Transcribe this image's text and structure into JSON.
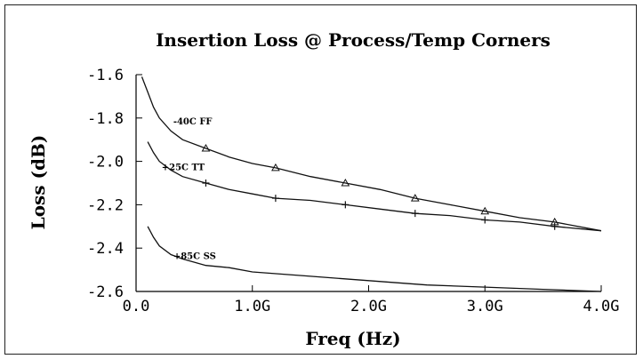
{
  "chart_data": {
    "type": "line",
    "title": "Insertion Loss @ Process/Temp Corners",
    "xlabel": "Freq (Hz)",
    "ylabel": "Loss (dB)",
    "xlim": [
      0,
      4.0
    ],
    "ylim": [
      -2.6,
      -1.6
    ],
    "x_ticks": [
      {
        "value": 0.0,
        "label": "0.0"
      },
      {
        "value": 1.0,
        "label": "1.0G"
      },
      {
        "value": 2.0,
        "label": "2.0G"
      },
      {
        "value": 3.0,
        "label": "3.0G"
      },
      {
        "value": 4.0,
        "label": "4.0G"
      }
    ],
    "y_ticks": [
      {
        "value": -1.6,
        "label": "-1.6"
      },
      {
        "value": -1.8,
        "label": "-1.8"
      },
      {
        "value": -2.0,
        "label": "-2.0"
      },
      {
        "value": -2.2,
        "label": "-2.2"
      },
      {
        "value": -2.4,
        "label": "-2.4"
      },
      {
        "value": -2.6,
        "label": "-2.6"
      }
    ],
    "grid": false,
    "series": [
      {
        "name": "-40C FF",
        "marker": "triangle",
        "x": [
          0.05,
          0.1,
          0.15,
          0.2,
          0.3,
          0.4,
          0.6,
          0.8,
          1.0,
          1.2,
          1.5,
          1.8,
          2.1,
          2.4,
          2.7,
          3.0,
          3.3,
          3.6,
          4.0
        ],
        "y": [
          -1.61,
          -1.68,
          -1.75,
          -1.8,
          -1.86,
          -1.9,
          -1.94,
          -1.98,
          -2.01,
          -2.03,
          -2.07,
          -2.1,
          -2.13,
          -2.17,
          -2.2,
          -2.23,
          -2.26,
          -2.28,
          -2.32
        ],
        "marker_x": [
          0.6,
          1.2,
          1.8,
          2.4,
          3.0,
          3.6
        ]
      },
      {
        "name": "+25C TT",
        "marker": "plus",
        "x": [
          0.1,
          0.15,
          0.2,
          0.3,
          0.4,
          0.6,
          0.8,
          1.0,
          1.2,
          1.5,
          1.8,
          2.1,
          2.4,
          2.7,
          3.0,
          3.3,
          3.6,
          4.0
        ],
        "y": [
          -1.91,
          -1.96,
          -2.0,
          -2.04,
          -2.07,
          -2.1,
          -2.13,
          -2.15,
          -2.17,
          -2.18,
          -2.2,
          -2.22,
          -2.24,
          -2.25,
          -2.27,
          -2.28,
          -2.3,
          -2.32
        ],
        "marker_x": [
          0.6,
          1.2,
          1.8,
          2.4,
          3.0,
          3.6
        ]
      },
      {
        "name": "+85C SS",
        "marker": "none",
        "x": [
          0.1,
          0.15,
          0.2,
          0.3,
          0.4,
          0.6,
          0.8,
          1.0,
          1.5,
          2.0,
          2.5,
          3.0,
          3.5,
          4.0
        ],
        "y": [
          -2.3,
          -2.35,
          -2.39,
          -2.43,
          -2.45,
          -2.48,
          -2.49,
          -2.51,
          -2.53,
          -2.55,
          -2.57,
          -2.58,
          -2.59,
          -2.6
        ],
        "marker_x": []
      }
    ]
  }
}
